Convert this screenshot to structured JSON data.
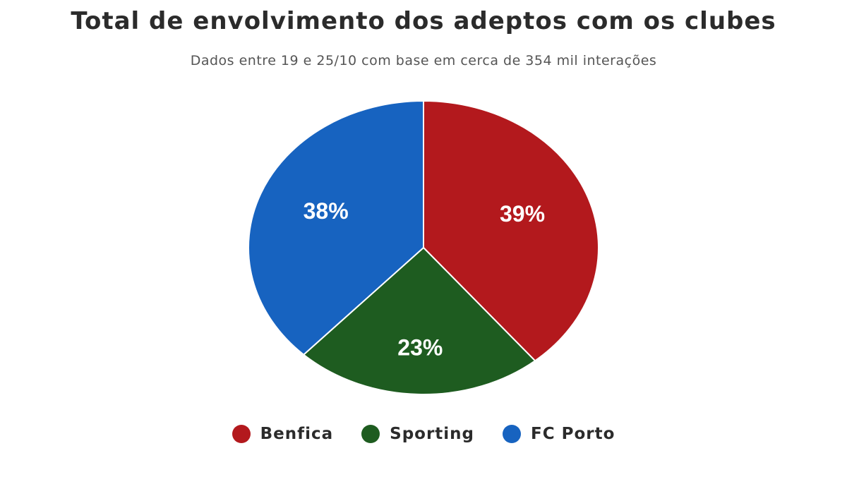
{
  "title": "Total de envolvimento dos adeptos com os clubes",
  "subtitle": "Dados entre 19 e 25/10 com base em cerca de 354 mil interações",
  "chart_data": {
    "type": "pie",
    "categories": [
      "Benfica",
      "Sporting",
      "FC Porto"
    ],
    "values": [
      39,
      23,
      38
    ],
    "data_labels": [
      "39%",
      "23%",
      "38%"
    ],
    "colors": [
      "#b3191d",
      "#1e5c20",
      "#1763c0"
    ],
    "legend_position": "bottom-center",
    "start_direction": "top, clockwise"
  }
}
